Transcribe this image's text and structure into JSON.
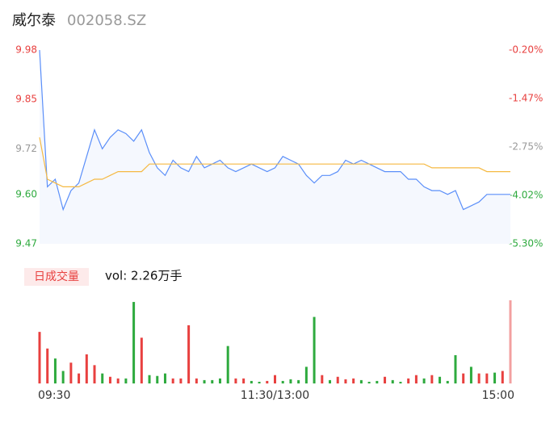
{
  "header": {
    "name": "威尔泰",
    "code": "002058.SZ"
  },
  "chart_data": [
    {
      "type": "line",
      "series": [
        {
          "color": "#5b8ff9",
          "fill": "#f5f8fe",
          "values": [
            9.98,
            9.62,
            9.64,
            9.56,
            9.61,
            9.63,
            9.7,
            9.77,
            9.72,
            9.75,
            9.77,
            9.76,
            9.74,
            9.77,
            9.71,
            9.67,
            9.65,
            9.69,
            9.67,
            9.66,
            9.7,
            9.67,
            9.68,
            9.69,
            9.67,
            9.66,
            9.67,
            9.68,
            9.67,
            9.66,
            9.67,
            9.7,
            9.69,
            9.68,
            9.65,
            9.63,
            9.65,
            9.65,
            9.66,
            9.69,
            9.68,
            9.69,
            9.68,
            9.67,
            9.66,
            9.66,
            9.66,
            9.64,
            9.64,
            9.62,
            9.61,
            9.61,
            9.6,
            9.61,
            9.56,
            9.57,
            9.58,
            9.6,
            9.6,
            9.6,
            9.6
          ]
        },
        {
          "color": "#f5b942",
          "values": [
            9.75,
            9.64,
            9.63,
            9.62,
            9.62,
            9.62,
            9.63,
            9.64,
            9.64,
            9.65,
            9.66,
            9.66,
            9.66,
            9.66,
            9.68,
            9.68,
            9.68,
            9.68,
            9.68,
            9.68,
            9.68,
            9.68,
            9.68,
            9.68,
            9.68,
            9.68,
            9.68,
            9.68,
            9.68,
            9.68,
            9.68,
            9.68,
            9.68,
            9.68,
            9.68,
            9.68,
            9.68,
            9.68,
            9.68,
            9.68,
            9.68,
            9.68,
            9.68,
            9.68,
            9.68,
            9.68,
            9.68,
            9.68,
            9.68,
            9.68,
            9.67,
            9.67,
            9.67,
            9.67,
            9.67,
            9.67,
            9.67,
            9.66,
            9.66,
            9.66,
            9.66
          ]
        }
      ],
      "ylim": [
        9.47,
        9.98
      ],
      "yticks": [
        9.98,
        9.85,
        9.72,
        {
          "value": 9.6,
          "label": "9.60"
        },
        9.47
      ],
      "ytick_colors": [
        "#e8403f",
        "#e8403f",
        "#999999",
        "#2eaa3e",
        "#2eaa3e"
      ],
      "y2lim": [
        -5.3,
        -0.2
      ],
      "y2ticks": [
        {
          "value": -0.2,
          "label": "-0.20%"
        },
        {
          "value": -1.47,
          "label": "-1.47%"
        },
        {
          "value": -2.75,
          "label": "-2.75%"
        },
        {
          "value": -4.02,
          "label": "-4.02%"
        },
        {
          "value": -5.3,
          "label": "-5.30%"
        }
      ],
      "y2tick_colors": [
        "#e8403f",
        "#e8403f",
        "#999999",
        "#2eaa3e",
        "#2eaa3e"
      ]
    },
    {
      "type": "bar",
      "title": "日成交量",
      "annotation": "vol: 2.26万手",
      "categories": [
        "09:30",
        null,
        null,
        null,
        null,
        null,
        null,
        null,
        null,
        null,
        null,
        null,
        null,
        null,
        null,
        null,
        null,
        null,
        null,
        null,
        null,
        null,
        null,
        null,
        null,
        null,
        null,
        null,
        null,
        null,
        "11:30/13:00",
        null,
        null,
        null,
        null,
        null,
        null,
        null,
        null,
        null,
        null,
        null,
        null,
        null,
        null,
        null,
        null,
        null,
        null,
        null,
        null,
        null,
        null,
        null,
        null,
        null,
        null,
        null,
        null,
        null,
        "15:00"
      ],
      "values": [
        620,
        420,
        300,
        150,
        250,
        120,
        350,
        220,
        120,
        80,
        60,
        60,
        980,
        550,
        100,
        90,
        120,
        60,
        60,
        700,
        60,
        40,
        40,
        60,
        450,
        60,
        60,
        30,
        20,
        30,
        100,
        30,
        50,
        40,
        200,
        800,
        100,
        40,
        80,
        50,
        60,
        40,
        20,
        30,
        80,
        40,
        20,
        60,
        100,
        60,
        100,
        80,
        30,
        340,
        120,
        200,
        120,
        120,
        130,
        150,
        1000
      ],
      "colors": [
        "#e8403f",
        "#e8403f",
        "#2eaa3e",
        "#2eaa3e",
        "#e8403f",
        "#e8403f",
        "#e8403f",
        "#e8403f",
        "#2eaa3e",
        "#e8403f",
        "#e8403f",
        "#2eaa3e",
        "#2eaa3e",
        "#e8403f",
        "#2eaa3e",
        "#2eaa3e",
        "#2eaa3e",
        "#e8403f",
        "#e8403f",
        "#e8403f",
        "#e8403f",
        "#2eaa3e",
        "#2eaa3e",
        "#2eaa3e",
        "#2eaa3e",
        "#e8403f",
        "#e8403f",
        "#2eaa3e",
        "#2eaa3e",
        "#e8403f",
        "#e8403f",
        "#2eaa3e",
        "#2eaa3e",
        "#2eaa3e",
        "#2eaa3e",
        "#2eaa3e",
        "#e8403f",
        "#2eaa3e",
        "#e8403f",
        "#e8403f",
        "#e8403f",
        "#2eaa3e",
        "#2eaa3e",
        "#2eaa3e",
        "#e8403f",
        "#2eaa3e",
        "#2eaa3e",
        "#e8403f",
        "#e8403f",
        "#2eaa3e",
        "#e8403f",
        "#2eaa3e",
        "#2eaa3e",
        "#2eaa3e",
        "#e8403f",
        "#2eaa3e",
        "#e8403f",
        "#e8403f",
        "#2eaa3e",
        "#e8403f",
        "#f3a0a0"
      ],
      "ylim": [
        0,
        1000
      ]
    }
  ]
}
